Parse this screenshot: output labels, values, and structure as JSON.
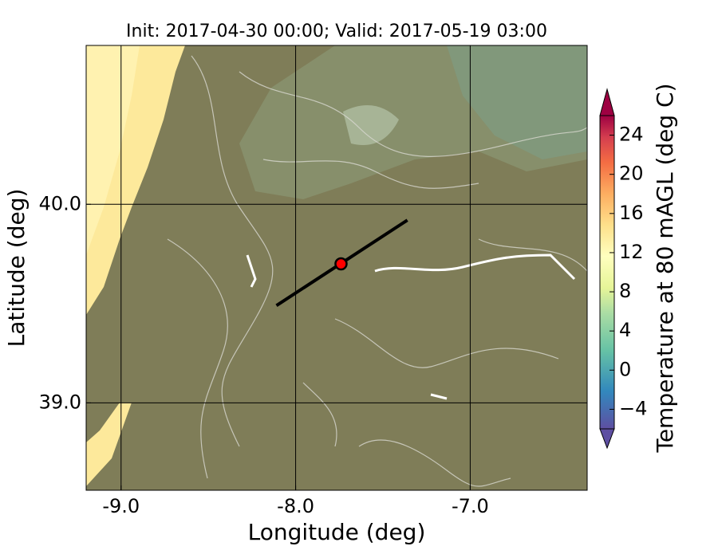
{
  "chart_data": {
    "type": "map",
    "title": "Init: 2017-04-30 00:00; Valid: 2017-05-19 03:00",
    "x_label": "Longitude (deg)",
    "y_label": "Latitude (deg)",
    "xlim": [
      -9.2,
      -6.33
    ],
    "ylim": [
      38.56,
      40.8
    ],
    "xticks": [
      {
        "value": -9,
        "label": "-9.0"
      },
      {
        "value": -8,
        "label": "-8.0"
      },
      {
        "value": -7,
        "label": "-7.0"
      }
    ],
    "yticks": [
      {
        "value": 39,
        "label": "39.0"
      },
      {
        "value": 40,
        "label": "40.0"
      }
    ],
    "grid": true,
    "section_line": {
      "x": [
        -8.11,
        -7.36
      ],
      "y": [
        39.49,
        39.92
      ],
      "color": "#000000"
    },
    "point": {
      "x": -7.74,
      "y": 39.7,
      "color": "#ff0000"
    },
    "colorbar": {
      "label": "Temperature at 80 mAGL (deg C)",
      "lim": [
        -6,
        26
      ],
      "ticks": [
        {
          "value": -4,
          "label": "−4"
        },
        0,
        4,
        8,
        12,
        16,
        20,
        24
      ]
    }
  }
}
